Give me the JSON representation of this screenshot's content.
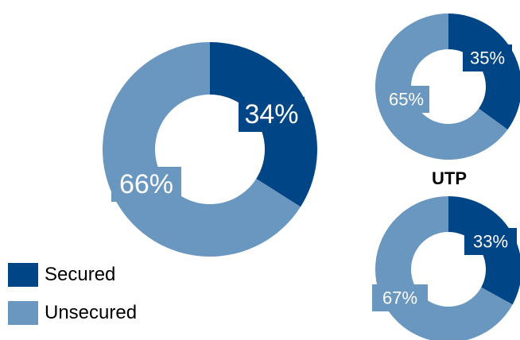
{
  "colors": {
    "secured": "#004586",
    "unsecured": "#6a97bf",
    "label_text": "#ffffff"
  },
  "legend": {
    "placement": "bottom-left",
    "items": [
      {
        "label": "Secured",
        "color": "#004586"
      },
      {
        "label": "Unsecured",
        "color": "#6a97bf"
      }
    ]
  },
  "chart_data": [
    {
      "type": "pie",
      "title": "",
      "categories": [
        "Secured",
        "Unsecured"
      ],
      "values": [
        34,
        66
      ],
      "labels": [
        "34%",
        "66%"
      ]
    },
    {
      "type": "pie",
      "title": "",
      "categories": [
        "Secured",
        "Unsecured"
      ],
      "values": [
        35,
        65
      ],
      "labels": [
        "35%",
        "65%"
      ]
    },
    {
      "type": "pie",
      "title": "UTP",
      "categories": [
        "Secured",
        "Unsecured"
      ],
      "values": [
        33,
        67
      ],
      "labels": [
        "33%",
        "67%"
      ]
    }
  ]
}
